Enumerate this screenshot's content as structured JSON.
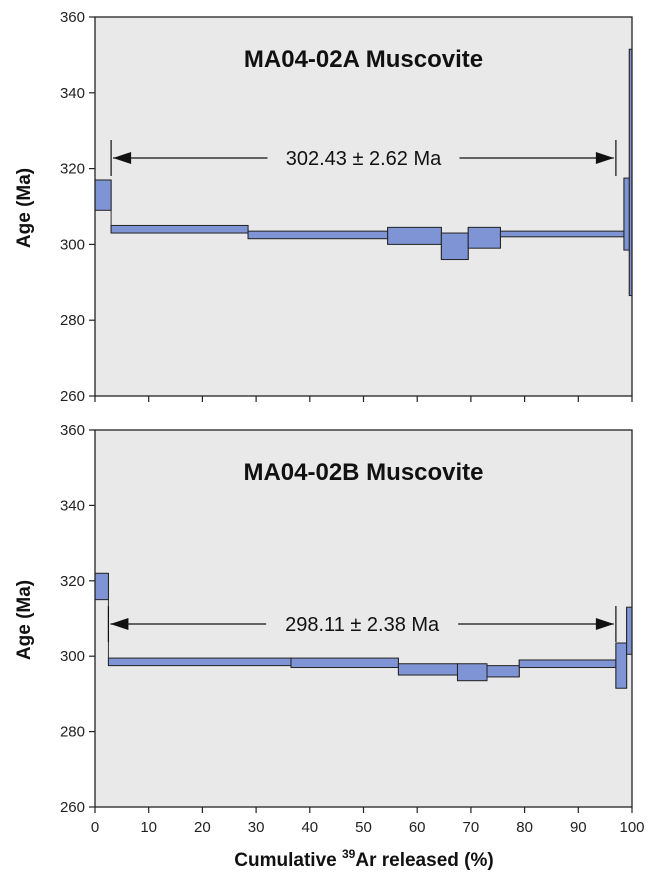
{
  "figure": {
    "ylabel": "Age (Ma)",
    "xlabel": {
      "prefix": "Cumulative ",
      "sup": "39",
      "suffix": "Ar released (%)"
    }
  },
  "chart_data": [
    {
      "type": "step-plateau",
      "title": "MA04-02A Muscovite",
      "plateau_label": "302.43 ± 2.62 Ma",
      "plateau_range": [
        3,
        97
      ],
      "xlim": [
        0,
        100
      ],
      "ylim": [
        260,
        360
      ],
      "xticks": [
        0,
        10,
        20,
        30,
        40,
        50,
        60,
        70,
        80,
        90,
        100
      ],
      "yticks": [
        260,
        280,
        300,
        320,
        340,
        360
      ],
      "show_x_tick_labels": false,
      "background": "#e9e9e9",
      "box_color": "#7f94d4",
      "steps": [
        {
          "x0": 0,
          "x1": 3,
          "lo": 309,
          "hi": 317
        },
        {
          "x0": 3,
          "x1": 28.5,
          "lo": 303,
          "hi": 305
        },
        {
          "x0": 28.5,
          "x1": 54.5,
          "lo": 301.5,
          "hi": 303.5
        },
        {
          "x0": 54.5,
          "x1": 64.5,
          "lo": 300,
          "hi": 304.5
        },
        {
          "x0": 64.5,
          "x1": 69.5,
          "lo": 296,
          "hi": 303
        },
        {
          "x0": 69.5,
          "x1": 75.5,
          "lo": 299,
          "hi": 304.5
        },
        {
          "x0": 75.5,
          "x1": 98.5,
          "lo": 302,
          "hi": 303.5
        },
        {
          "x0": 98.5,
          "x1": 99.5,
          "lo": 298.5,
          "hi": 317.5
        },
        {
          "x0": 99.5,
          "x1": 100,
          "lo": 286.5,
          "hi": 351.5
        }
      ]
    },
    {
      "type": "step-plateau",
      "title": "MA04-02B Muscovite",
      "plateau_label": "298.11 ± 2.38 Ma",
      "plateau_range": [
        2.5,
        97
      ],
      "xlim": [
        0,
        100
      ],
      "ylim": [
        260,
        360
      ],
      "xticks": [
        0,
        10,
        20,
        30,
        40,
        50,
        60,
        70,
        80,
        90,
        100
      ],
      "yticks": [
        260,
        280,
        300,
        320,
        340,
        360
      ],
      "show_x_tick_labels": true,
      "background": "#e9e9e9",
      "box_color": "#7f94d4",
      "steps": [
        {
          "x0": 0,
          "x1": 2.5,
          "lo": 315,
          "hi": 322
        },
        {
          "x0": 2.5,
          "x1": 36.5,
          "lo": 297.5,
          "hi": 299.5
        },
        {
          "x0": 36.5,
          "x1": 56.5,
          "lo": 297,
          "hi": 299.5
        },
        {
          "x0": 56.5,
          "x1": 67.5,
          "lo": 295,
          "hi": 298
        },
        {
          "x0": 67.5,
          "x1": 73,
          "lo": 293.5,
          "hi": 298
        },
        {
          "x0": 73,
          "x1": 79,
          "lo": 294.5,
          "hi": 297.5
        },
        {
          "x0": 79,
          "x1": 97,
          "lo": 297,
          "hi": 299
        },
        {
          "x0": 97,
          "x1": 99,
          "lo": 291.5,
          "hi": 303.5
        },
        {
          "x0": 99,
          "x1": 100,
          "lo": 300.5,
          "hi": 313
        }
      ]
    }
  ]
}
